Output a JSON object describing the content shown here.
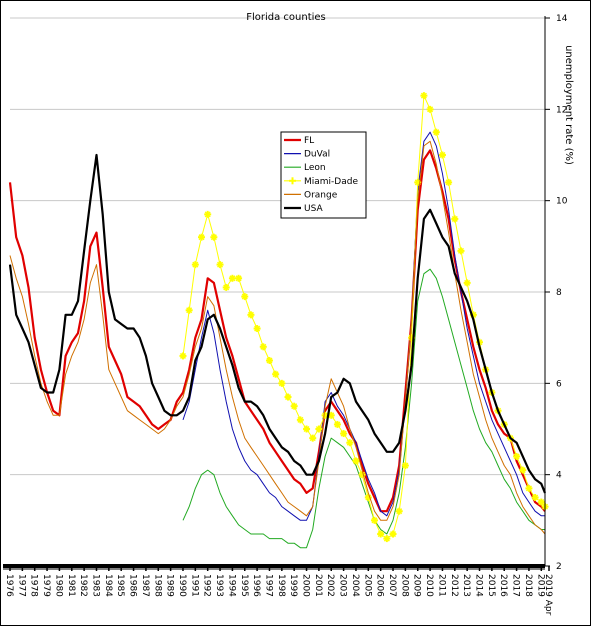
{
  "chart_data": {
    "type": "line",
    "title": "Florida counties",
    "ylabel": "unemployment rate (%)",
    "xlabel": "",
    "ylim": [
      2,
      14
    ],
    "xlim": [
      1976,
      2019.3
    ],
    "y_ticks": [
      "2",
      "4",
      "6",
      "8",
      "10",
      "12",
      "14"
    ],
    "x_ticks": [
      "1976",
      "1977",
      "1978",
      "1979",
      "1980",
      "1981",
      "1982",
      "1983",
      "1984",
      "1985",
      "1986",
      "1987",
      "1988",
      "1989",
      "1990",
      "1991",
      "1992",
      "1993",
      "1994",
      "1995",
      "1996",
      "1997",
      "1998",
      "1999",
      "2000",
      "2001",
      "2002",
      "2003",
      "2004",
      "2005",
      "2006",
      "2007",
      "2008",
      "2009",
      "2010",
      "2011",
      "2012",
      "2013",
      "2014",
      "2015",
      "2016",
      "2017",
      "2018",
      "2019",
      "2019 Apr"
    ],
    "grid": true,
    "legend_position": "upper-center",
    "series": [
      {
        "name": "FL",
        "color": "#e00000",
        "width": 2.2,
        "x": [
          1976,
          1976.5,
          1977,
          1977.5,
          1978,
          1978.5,
          1979,
          1979.5,
          1980,
          1980.5,
          1981,
          1981.5,
          1982,
          1982.5,
          1983,
          1983.5,
          1984,
          1984.5,
          1985,
          1985.5,
          1986,
          1986.5,
          1987,
          1987.5,
          1988,
          1988.5,
          1989,
          1989.5,
          1990,
          1990.5,
          1991,
          1991.5,
          1992,
          1992.5,
          1993,
          1993.5,
          1994,
          1994.5,
          1995,
          1995.5,
          1996,
          1996.5,
          1997,
          1997.5,
          1998,
          1998.5,
          1999,
          1999.5,
          2000,
          2000.5,
          2001,
          2001.5,
          2002,
          2002.5,
          2003,
          2003.5,
          2004,
          2004.5,
          2005,
          2005.5,
          2006,
          2006.5,
          2007,
          2007.5,
          2008,
          2008.5,
          2009,
          2009.5,
          2010,
          2010.5,
          2011,
          2011.5,
          2012,
          2012.5,
          2013,
          2013.5,
          2014,
          2014.5,
          2015,
          2015.5,
          2016,
          2016.5,
          2017,
          2017.5,
          2018,
          2018.5,
          2019,
          2019.3
        ],
        "y": [
          10.4,
          9.2,
          8.8,
          8.1,
          7.0,
          6.3,
          5.8,
          5.4,
          5.3,
          6.6,
          6.9,
          7.1,
          7.8,
          9.0,
          9.3,
          8.1,
          6.8,
          6.5,
          6.2,
          5.7,
          5.6,
          5.5,
          5.3,
          5.1,
          5.0,
          5.1,
          5.2,
          5.6,
          5.8,
          6.3,
          7.0,
          7.4,
          8.3,
          8.2,
          7.6,
          7.0,
          6.6,
          6.1,
          5.6,
          5.4,
          5.2,
          5.0,
          4.7,
          4.5,
          4.3,
          4.1,
          3.9,
          3.8,
          3.6,
          3.7,
          4.5,
          5.4,
          5.6,
          5.4,
          5.2,
          4.9,
          4.7,
          4.2,
          3.8,
          3.5,
          3.2,
          3.2,
          3.5,
          4.2,
          5.8,
          7.4,
          9.8,
          10.9,
          11.1,
          10.7,
          10.2,
          9.6,
          8.7,
          8.0,
          7.4,
          6.8,
          6.3,
          5.9,
          5.4,
          5.1,
          4.9,
          4.8,
          4.3,
          4.0,
          3.7,
          3.4,
          3.3,
          3.2
        ]
      },
      {
        "name": "DuVal",
        "color": "#1010b0",
        "width": 1,
        "x": [
          1990,
          1990.5,
          1991,
          1991.5,
          1992,
          1992.5,
          1993,
          1993.5,
          1994,
          1994.5,
          1995,
          1995.5,
          1996,
          1996.5,
          1997,
          1997.5,
          1998,
          1998.5,
          1999,
          1999.5,
          2000,
          2000.5,
          2001,
          2001.5,
          2002,
          2002.5,
          2003,
          2003.5,
          2004,
          2004.5,
          2005,
          2005.5,
          2006,
          2006.5,
          2007,
          2007.5,
          2008,
          2008.5,
          2009,
          2009.5,
          2010,
          2010.5,
          2011,
          2011.5,
          2012,
          2012.5,
          2013,
          2013.5,
          2014,
          2014.5,
          2015,
          2015.5,
          2016,
          2016.5,
          2017,
          2017.5,
          2018,
          2018.5,
          2019,
          2019.3
        ],
        "y": [
          5.2,
          5.6,
          6.3,
          7.0,
          7.6,
          7.1,
          6.3,
          5.6,
          5.0,
          4.6,
          4.3,
          4.1,
          4.0,
          3.8,
          3.6,
          3.5,
          3.3,
          3.2,
          3.1,
          3.0,
          3.0,
          3.3,
          4.4,
          5.6,
          5.8,
          5.5,
          5.3,
          5.0,
          4.7,
          4.3,
          3.9,
          3.6,
          3.2,
          3.1,
          3.4,
          4.1,
          5.6,
          7.4,
          10.2,
          11.3,
          11.5,
          11.2,
          10.6,
          9.8,
          8.8,
          8.0,
          7.2,
          6.6,
          6.0,
          5.6,
          5.2,
          4.9,
          4.6,
          4.3,
          4.0,
          3.6,
          3.4,
          3.2,
          3.1,
          3.1
        ]
      },
      {
        "name": "Leon",
        "color": "#22aa22",
        "width": 1,
        "x": [
          1990,
          1990.5,
          1991,
          1991.5,
          1992,
          1992.5,
          1993,
          1993.5,
          1994,
          1994.5,
          1995,
          1995.5,
          1996,
          1996.5,
          1997,
          1997.5,
          1998,
          1998.5,
          1999,
          1999.5,
          2000,
          2000.5,
          2001,
          2001.5,
          2002,
          2002.5,
          2003,
          2003.5,
          2004,
          2004.5,
          2005,
          2005.5,
          2006,
          2006.5,
          2007,
          2007.5,
          2008,
          2008.5,
          2009,
          2009.5,
          2010,
          2010.5,
          2011,
          2011.5,
          2012,
          2012.5,
          2013,
          2013.5,
          2014,
          2014.5,
          2015,
          2015.5,
          2016,
          2016.5,
          2017,
          2017.5,
          2018,
          2018.5,
          2019,
          2019.3
        ],
        "y": [
          3.0,
          3.3,
          3.7,
          4.0,
          4.1,
          4.0,
          3.6,
          3.3,
          3.1,
          2.9,
          2.8,
          2.7,
          2.7,
          2.7,
          2.6,
          2.6,
          2.6,
          2.5,
          2.5,
          2.4,
          2.4,
          2.8,
          3.7,
          4.4,
          4.8,
          4.7,
          4.6,
          4.4,
          4.2,
          3.8,
          3.4,
          3.0,
          2.8,
          2.7,
          3.0,
          3.6,
          4.6,
          6.0,
          7.8,
          8.4,
          8.5,
          8.3,
          7.9,
          7.4,
          6.9,
          6.4,
          5.9,
          5.4,
          5.0,
          4.7,
          4.5,
          4.2,
          3.9,
          3.7,
          3.4,
          3.2,
          3.0,
          2.9,
          2.8,
          2.8
        ]
      },
      {
        "name": "Miami-Dade",
        "color": "#ffff00",
        "width": 1,
        "marker": "star",
        "x": [
          1990,
          1990.5,
          1991,
          1991.5,
          1992,
          1992.5,
          1993,
          1993.5,
          1994,
          1994.5,
          1995,
          1995.5,
          1996,
          1996.5,
          1997,
          1997.5,
          1998,
          1998.5,
          1999,
          1999.5,
          2000,
          2000.5,
          2001,
          2001.5,
          2002,
          2002.5,
          2003,
          2003.5,
          2004,
          2004.5,
          2005,
          2005.5,
          2006,
          2006.5,
          2007,
          2007.5,
          2008,
          2008.5,
          2009,
          2009.5,
          2010,
          2010.5,
          2011,
          2011.5,
          2012,
          2012.5,
          2013,
          2013.5,
          2014,
          2014.5,
          2015,
          2015.5,
          2016,
          2016.5,
          2017,
          2017.5,
          2018,
          2018.5,
          2019,
          2019.3
        ],
        "y": [
          6.6,
          7.6,
          8.6,
          9.2,
          9.7,
          9.2,
          8.6,
          8.1,
          8.3,
          8.3,
          7.9,
          7.5,
          7.2,
          6.8,
          6.5,
          6.2,
          6.0,
          5.7,
          5.5,
          5.2,
          5.0,
          4.8,
          5.0,
          5.3,
          5.3,
          5.1,
          4.9,
          4.7,
          4.3,
          4.0,
          3.5,
          3.0,
          2.7,
          2.6,
          2.7,
          3.2,
          4.2,
          7.0,
          10.4,
          12.3,
          12.0,
          11.5,
          11.0,
          10.4,
          9.6,
          8.9,
          8.2,
          7.5,
          6.9,
          6.3,
          5.8,
          5.4,
          5.1,
          4.8,
          4.4,
          4.1,
          3.7,
          3.5,
          3.4,
          3.3
        ]
      },
      {
        "name": "Orange",
        "color": "#d07000",
        "width": 1,
        "x": [
          1976,
          1976.5,
          1977,
          1977.5,
          1978,
          1978.5,
          1979,
          1979.5,
          1980,
          1980.5,
          1981,
          1981.5,
          1982,
          1982.5,
          1983,
          1983.5,
          1984,
          1984.5,
          1985,
          1985.5,
          1986,
          1986.5,
          1987,
          1987.5,
          1988,
          1988.5,
          1989,
          1989.5,
          1990,
          1990.5,
          1991,
          1991.5,
          1992,
          1992.5,
          1993,
          1993.5,
          1994,
          1994.5,
          1995,
          1995.5,
          1996,
          1996.5,
          1997,
          1997.5,
          1998,
          1998.5,
          1999,
          1999.5,
          2000,
          2000.5,
          2001,
          2001.5,
          2002,
          2002.5,
          2003,
          2003.5,
          2004,
          2004.5,
          2005,
          2005.5,
          2006,
          2006.5,
          2007,
          2007.5,
          2008,
          2008.5,
          2009,
          2009.5,
          2010,
          2010.5,
          2011,
          2011.5,
          2012,
          2012.5,
          2013,
          2013.5,
          2014,
          2014.5,
          2015,
          2015.5,
          2016,
          2016.5,
          2017,
          2017.5,
          2018,
          2018.5,
          2019,
          2019.3
        ],
        "y": [
          8.8,
          8.3,
          7.9,
          7.3,
          6.6,
          6.0,
          5.6,
          5.3,
          5.3,
          6.2,
          6.6,
          6.9,
          7.4,
          8.2,
          8.6,
          7.5,
          6.3,
          6.0,
          5.7,
          5.4,
          5.3,
          5.2,
          5.1,
          5.0,
          4.9,
          5.0,
          5.2,
          5.5,
          5.7,
          6.2,
          6.8,
          7.2,
          7.9,
          7.7,
          7.0,
          6.3,
          5.7,
          5.2,
          4.8,
          4.6,
          4.4,
          4.2,
          4.0,
          3.8,
          3.6,
          3.4,
          3.3,
          3.2,
          3.1,
          3.3,
          4.3,
          5.5,
          6.1,
          5.8,
          5.5,
          5.0,
          4.6,
          4.1,
          3.6,
          3.2,
          3.0,
          3.0,
          3.3,
          4.0,
          5.6,
          7.4,
          10.0,
          11.2,
          11.3,
          10.8,
          10.1,
          9.3,
          8.4,
          7.6,
          6.9,
          6.2,
          5.7,
          5.2,
          4.8,
          4.5,
          4.2,
          4.0,
          3.6,
          3.3,
          3.1,
          2.9,
          2.8,
          2.7
        ]
      },
      {
        "name": "USA",
        "color": "#000000",
        "width": 2.2,
        "x": [
          1976,
          1976.5,
          1977,
          1977.5,
          1978,
          1978.5,
          1979,
          1979.5,
          1980,
          1980.5,
          1981,
          1981.5,
          1982,
          1982.5,
          1983,
          1983.5,
          1984,
          1984.5,
          1985,
          1985.5,
          1986,
          1986.5,
          1987,
          1987.5,
          1988,
          1988.5,
          1989,
          1989.5,
          1990,
          1990.5,
          1991,
          1991.5,
          1992,
          1992.5,
          1993,
          1993.5,
          1994,
          1994.5,
          1995,
          1995.5,
          1996,
          1996.5,
          1997,
          1997.5,
          1998,
          1998.5,
          1999,
          1999.5,
          2000,
          2000.5,
          2001,
          2001.5,
          2002,
          2002.5,
          2003,
          2003.5,
          2004,
          2004.5,
          2005,
          2005.5,
          2006,
          2006.5,
          2007,
          2007.5,
          2008,
          2008.5,
          2009,
          2009.5,
          2010,
          2010.5,
          2011,
          2011.5,
          2012,
          2012.5,
          2013,
          2013.5,
          2014,
          2014.5,
          2015,
          2015.5,
          2016,
          2016.5,
          2017,
          2017.5,
          2018,
          2018.5,
          2019,
          2019.3
        ],
        "y": [
          8.6,
          7.5,
          7.2,
          6.9,
          6.4,
          5.9,
          5.8,
          5.8,
          6.3,
          7.5,
          7.5,
          7.8,
          8.9,
          10.0,
          11.0,
          9.7,
          8.0,
          7.4,
          7.3,
          7.2,
          7.2,
          7.0,
          6.6,
          6.0,
          5.7,
          5.4,
          5.3,
          5.3,
          5.4,
          5.7,
          6.5,
          6.8,
          7.4,
          7.5,
          7.2,
          6.8,
          6.4,
          5.9,
          5.6,
          5.6,
          5.5,
          5.3,
          5.0,
          4.8,
          4.6,
          4.5,
          4.3,
          4.2,
          4.0,
          4.0,
          4.3,
          4.9,
          5.7,
          5.8,
          6.1,
          6.0,
          5.6,
          5.4,
          5.2,
          4.9,
          4.7,
          4.5,
          4.5,
          4.7,
          5.4,
          6.4,
          8.3,
          9.6,
          9.8,
          9.5,
          9.2,
          9.0,
          8.4,
          8.1,
          7.8,
          7.4,
          6.8,
          6.3,
          5.8,
          5.4,
          5.1,
          4.8,
          4.7,
          4.4,
          4.1,
          3.9,
          3.8,
          3.6
        ]
      }
    ]
  }
}
